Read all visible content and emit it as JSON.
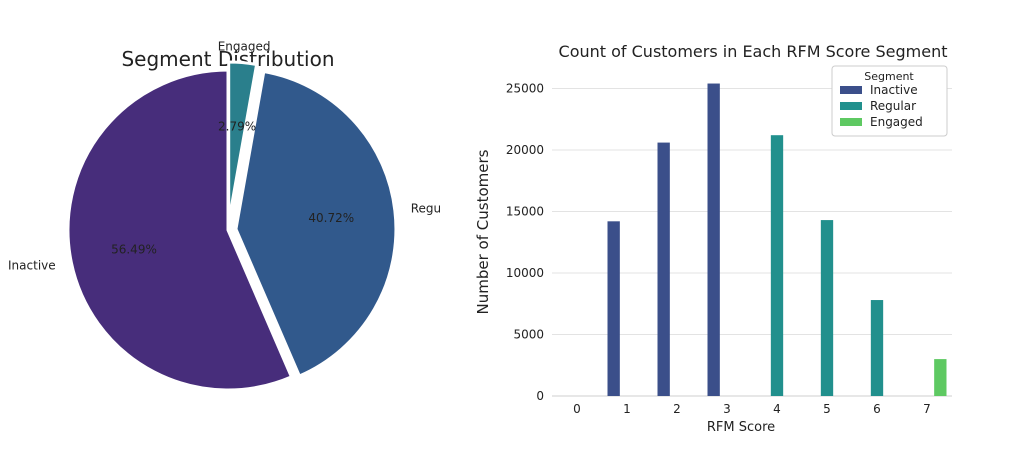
{
  "chart_data": [
    {
      "type": "pie",
      "title": "Segment Distribution",
      "slices": [
        {
          "label": "Engaged",
          "value": 2.79,
          "pct_label": "2.79%",
          "color": "#2a7f8c",
          "explode": true
        },
        {
          "label": "Regular",
          "value": 40.72,
          "pct_label": "40.72%",
          "color": "#31598c",
          "explode": true
        },
        {
          "label": "Inactive",
          "value": 56.49,
          "pct_label": "56.49%",
          "color": "#472d7b",
          "explode": false
        }
      ],
      "start_angle_deg": 90,
      "direction": "clockwise"
    },
    {
      "type": "bar",
      "title": "Count of Customers in Each RFM Score Segment",
      "xlabel": "RFM Score",
      "ylabel": "Number of Customers",
      "categories": [
        "0",
        "1",
        "2",
        "3",
        "4",
        "5",
        "6",
        "7"
      ],
      "ylim": [
        0,
        26500
      ],
      "yticks": [
        0,
        5000,
        10000,
        15000,
        20000,
        25000
      ],
      "grid": "y",
      "legend": {
        "title": "Segment",
        "placement": "top-right"
      },
      "series": [
        {
          "name": "Inactive",
          "color": "#3b4f8a",
          "values": [
            0,
            14200,
            20600,
            25400,
            0,
            0,
            0,
            0
          ]
        },
        {
          "name": "Regular",
          "color": "#21908d",
          "values": [
            0,
            0,
            0,
            0,
            21200,
            14300,
            7800,
            0
          ]
        },
        {
          "name": "Engaged",
          "color": "#5ec962",
          "values": [
            0,
            0,
            0,
            0,
            0,
            0,
            0,
            3000
          ]
        }
      ]
    }
  ]
}
